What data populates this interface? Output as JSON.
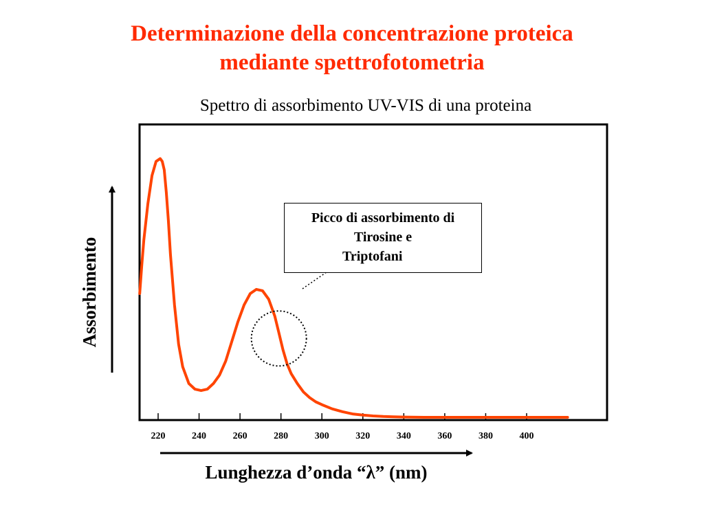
{
  "slide": {
    "title_line1": "Determinazione della concentrazione proteica",
    "title_line2": "mediante spettrofotometria",
    "title_color": "#ff2a00"
  },
  "chart_data": {
    "type": "line",
    "title": "Spettro di assorbimento UV-VIS di una proteina",
    "xlabel": "Lunghezza d’onda “λ” (nm)",
    "ylabel": "Assorbimento",
    "xticks": [
      220,
      240,
      260,
      280,
      300,
      320,
      340,
      360,
      380,
      400
    ],
    "xlim": [
      211,
      422
    ],
    "ylim": [
      0,
      1
    ],
    "grid": false,
    "series_color": "#ff4400",
    "series": [
      {
        "x": [
          211,
          212,
          213,
          215,
          217,
          219,
          221,
          222,
          223,
          224,
          225,
          226,
          228,
          230,
          232,
          235,
          238,
          241,
          244,
          247,
          250,
          253,
          256,
          259,
          262,
          265,
          268,
          271,
          274,
          277,
          279,
          281,
          283,
          285,
          288,
          291,
          294,
          297,
          300,
          305,
          310,
          315,
          320,
          325,
          330,
          335,
          340,
          350,
          360,
          370,
          380,
          390,
          400,
          410,
          420
        ],
        "y": [
          0.44,
          0.54,
          0.63,
          0.76,
          0.86,
          0.91,
          0.92,
          0.91,
          0.88,
          0.8,
          0.7,
          0.58,
          0.4,
          0.26,
          0.18,
          0.12,
          0.1,
          0.095,
          0.1,
          0.12,
          0.15,
          0.2,
          0.27,
          0.34,
          0.4,
          0.44,
          0.455,
          0.45,
          0.42,
          0.36,
          0.3,
          0.24,
          0.19,
          0.155,
          0.12,
          0.09,
          0.07,
          0.055,
          0.045,
          0.03,
          0.02,
          0.012,
          0.008,
          0.005,
          0.003,
          0.002,
          0.001,
          0.0,
          0.0,
          0.0,
          0.0,
          0.0,
          0.0,
          0.0,
          0.0
        ]
      }
    ],
    "annotation": {
      "lines": [
        "Picco di assorbimento di",
        "Tirosine e",
        "Triptofani"
      ],
      "target_x": 279
    }
  }
}
